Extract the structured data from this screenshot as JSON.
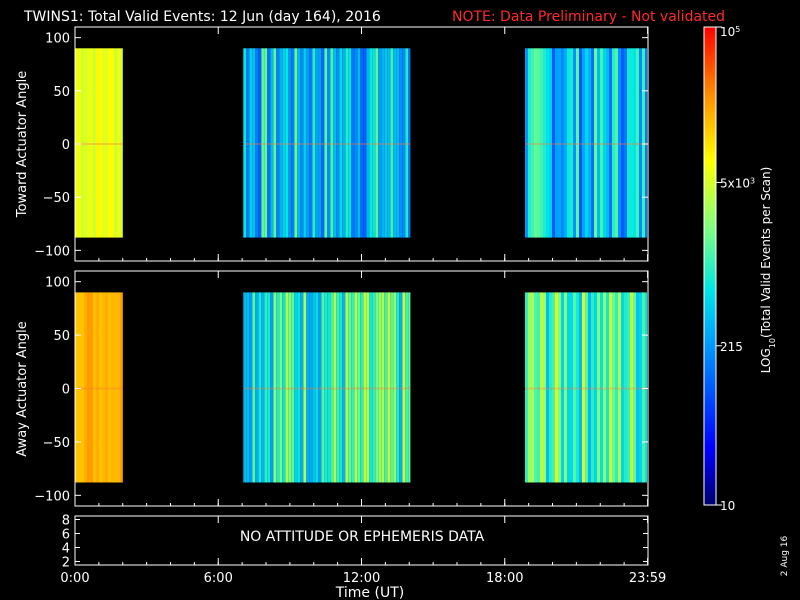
{
  "chart_data": {
    "type": "heatmap",
    "title": "TWINS1: Total Valid Events: 12 Jun (day 164), 2016",
    "note": "NOTE: Data Preliminary - Not validated",
    "xlabel": "Time (UT)",
    "x_ticks": [
      "0:00",
      "6:00",
      "12:00",
      "18:00",
      "23:59"
    ],
    "x_tick_hours": [
      0,
      6,
      12,
      18,
      23.983
    ],
    "xlim_hours": [
      0,
      24
    ],
    "panels": [
      {
        "name": "toward",
        "ylabel": "Toward Actuator Angle",
        "ylim": [
          -110,
          110
        ],
        "y_ticks": [
          "100",
          "50",
          "0",
          "−50",
          "−100"
        ],
        "y_tick_values": [
          100,
          50,
          0,
          -50,
          -100
        ],
        "data_angle_range": [
          -88,
          90
        ],
        "segments": [
          {
            "start_hour": 0.0,
            "end_hour": 2.0,
            "mean_level": 0.7,
            "spread": 0.04
          },
          {
            "start_hour": 7.05,
            "end_hour": 14.05,
            "mean_level": 0.4,
            "spread": 0.16
          },
          {
            "start_hour": 18.85,
            "end_hour": 24.0,
            "mean_level": 0.4,
            "spread": 0.16
          }
        ]
      },
      {
        "name": "away",
        "ylabel": "Away Actuator Angle",
        "ylim": [
          -110,
          110
        ],
        "y_ticks": [
          "100",
          "50",
          "0",
          "−50",
          "−100"
        ],
        "y_tick_values": [
          100,
          50,
          0,
          -50,
          -100
        ],
        "data_angle_range": [
          -88,
          90
        ],
        "segments": [
          {
            "start_hour": 0.0,
            "end_hour": 2.0,
            "mean_level": 0.82,
            "spread": 0.03
          },
          {
            "start_hour": 7.05,
            "end_hour": 14.05,
            "mean_level": 0.5,
            "spread": 0.16
          },
          {
            "start_hour": 18.85,
            "end_hour": 24.0,
            "mean_level": 0.53,
            "spread": 0.16
          }
        ]
      }
    ],
    "bottom_panel": {
      "y_ticks": [
        "8",
        "6",
        "4",
        "2"
      ],
      "y_tick_values": [
        8,
        6,
        4,
        2
      ],
      "ylim": [
        1.5,
        8.5
      ],
      "message": "NO ATTITUDE OR EPHEMERIS DATA"
    },
    "colorbar": {
      "label_main": "LOG",
      "label_sub": "10",
      "label_rest": "(Total Valid Events per Scan)",
      "scale": "log",
      "range": [
        10,
        100000
      ],
      "ticks": [
        {
          "base": "10",
          "exp": "5",
          "value": 100000
        },
        {
          "base": "5x10",
          "exp": "3",
          "value": 5000
        },
        {
          "base": "215",
          "exp": "",
          "value": 215
        },
        {
          "base": "10",
          "exp": "",
          "value": 10
        }
      ]
    },
    "date_stamp": "2 Aug 16"
  }
}
